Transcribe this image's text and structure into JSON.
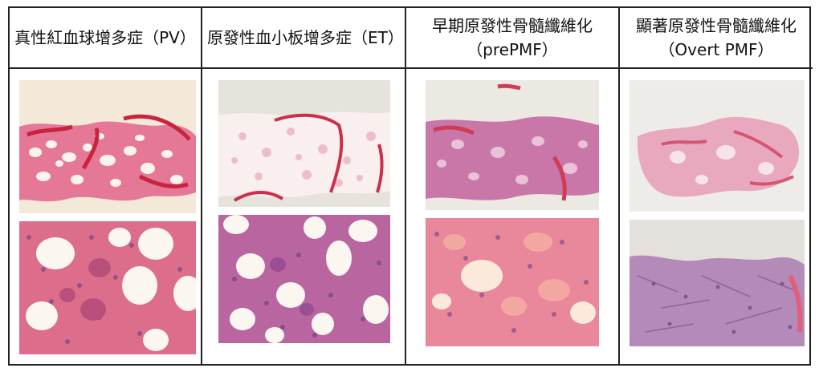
{
  "columns": [
    {
      "title": "真性紅血球增多症（PV）"
    },
    {
      "title": "原發性血小板增多症（ET）"
    },
    {
      "title": "早期原發性骨髓纖維化（prePMF）"
    },
    {
      "title": "顯著原發性骨髓纖維化（Overt PMF）"
    }
  ],
  "colors": {
    "border": "#222222",
    "paper": "#f6ecde",
    "stain_pink": "#e0708c",
    "stain_red": "#d0344e",
    "fat_white": "#fbf6f0",
    "stain_purple": "#a06aa8",
    "nuclei": "#5a3a7a"
  }
}
